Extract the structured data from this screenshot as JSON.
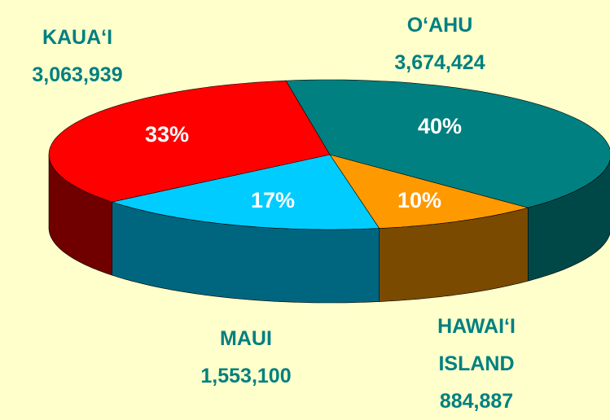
{
  "chart_data": {
    "type": "pie3d",
    "categories": [
      "O‘AHU",
      "HAWAI‘I ISLAND",
      "MAUI",
      "KAUA‘I"
    ],
    "values": [
      3674424,
      884887,
      1553100,
      3063939
    ],
    "value_labels": [
      "3,674,424",
      "884,887",
      "1,553,100",
      "3,063,939"
    ],
    "percent_labels": [
      "40%",
      "10%",
      "17%",
      "33%"
    ],
    "colors": [
      "#008080",
      "#ff9900",
      "#00ccff",
      "#ff0000"
    ],
    "side_colors": [
      "#004848",
      "#7a4a00",
      "#006680",
      "#700000"
    ]
  }
}
